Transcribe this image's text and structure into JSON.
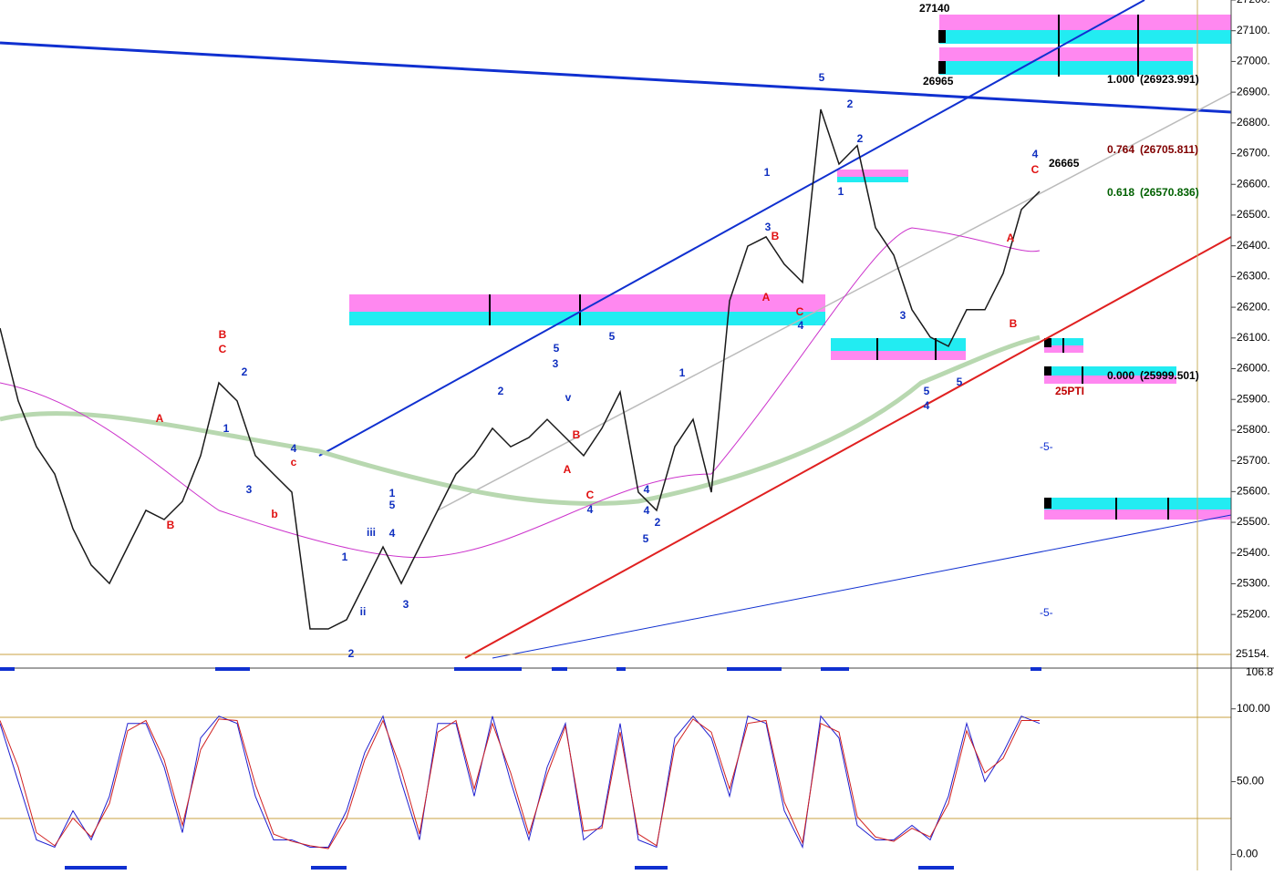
{
  "chart_data": [
    {
      "type": "line",
      "series": [
        {
          "name": "Price",
          "color": "#1a1a1a",
          "values": [
            26132,
            25895,
            25746,
            25657,
            25479,
            25361,
            25301,
            25420,
            25539,
            25509,
            25568,
            25717,
            25954,
            25895,
            25717,
            25657,
            25598,
            25153,
            25153,
            25183,
            25301,
            25420,
            25301,
            25420,
            25539,
            25657,
            25717,
            25806,
            25746,
            25776,
            25835,
            25776,
            25717,
            25806,
            25924,
            25598,
            25539,
            25746,
            25835,
            25598,
            26221,
            26399,
            26429,
            26340,
            26281,
            26844,
            26666,
            26726,
            26459,
            26370,
            26192,
            26103,
            26073,
            26192,
            26192,
            26310,
            26518,
            26577
          ]
        }
      ],
      "ylim": [
        25070,
        27200
      ],
      "yticks": [
        {
          "value": 27200,
          "label": "27200."
        },
        {
          "value": 27100,
          "label": "27100."
        },
        {
          "value": 27000,
          "label": "27000."
        },
        {
          "value": 26900,
          "label": "26900."
        },
        {
          "value": 26800,
          "label": "26800."
        },
        {
          "value": 26700,
          "label": "26700."
        },
        {
          "value": 26600,
          "label": "26600."
        },
        {
          "value": 26500,
          "label": "26500."
        },
        {
          "value": 26400,
          "label": "26400."
        },
        {
          "value": 26300,
          "label": "26300."
        },
        {
          "value": 26200,
          "label": "26200."
        },
        {
          "value": 26100,
          "label": "26100."
        },
        {
          "value": 26000,
          "label": "26000."
        },
        {
          "value": 25900,
          "label": "25900."
        },
        {
          "value": 25800,
          "label": "25800."
        },
        {
          "value": 25700,
          "label": "25700."
        },
        {
          "value": 25600,
          "label": "25600."
        },
        {
          "value": 25500,
          "label": "25500."
        },
        {
          "value": 25400,
          "label": "25400."
        },
        {
          "value": 25300,
          "label": "25300."
        },
        {
          "value": 25200,
          "label": "25200."
        }
      ],
      "annotations": [
        "27140",
        "26965",
        "26665",
        "1.000",
        "(26923.991)",
        "0.764",
        "(26705.811)",
        "0.618",
        "(26570.836)",
        "0.000",
        "(25999.501)",
        "25PTI",
        "-5-",
        "-5-",
        "25154."
      ],
      "wave_labels": [
        "B",
        "C",
        "A",
        "B",
        "1",
        "2",
        "3",
        "4",
        "c",
        "b",
        "1",
        "2",
        "3",
        "4",
        "5",
        "iii",
        "ii",
        "1",
        "v",
        "2",
        "3",
        "5",
        "5",
        "1",
        "2",
        "4",
        "A",
        "B",
        "C",
        "4",
        "1",
        "2",
        "3",
        "4",
        "5",
        "A",
        "B",
        "C",
        "4",
        "5",
        "1",
        "2",
        "3",
        "4",
        "5",
        "A",
        "B",
        "C",
        "4",
        "5"
      ]
    },
    {
      "type": "line",
      "series": [
        {
          "name": "%K",
          "color": "#2020d0",
          "values": [
            90,
            50,
            10,
            5,
            30,
            10,
            40,
            90,
            90,
            60,
            15,
            80,
            95,
            90,
            40,
            10,
            10,
            5,
            5,
            30,
            70,
            95,
            50,
            10,
            90,
            90,
            40,
            95,
            50,
            10,
            60,
            90,
            10,
            20,
            90,
            10,
            5,
            80,
            95,
            80,
            40,
            95,
            90,
            30,
            5,
            95,
            80,
            20,
            10,
            10,
            20,
            10,
            40,
            90,
            50,
            70,
            95,
            90
          ]
        },
        {
          "name": "%D",
          "color": "#d02020",
          "values": [
            92,
            60,
            15,
            6,
            25,
            12,
            35,
            85,
            92,
            65,
            20,
            72,
            93,
            92,
            48,
            14,
            9,
            6,
            4,
            25,
            65,
            92,
            58,
            14,
            84,
            92,
            45,
            90,
            56,
            14,
            55,
            88,
            16,
            18,
            84,
            14,
            6,
            74,
            93,
            84,
            45,
            90,
            92,
            36,
            8,
            90,
            84,
            26,
            12,
            9,
            18,
            12,
            35,
            85,
            56,
            66,
            92,
            92
          ]
        }
      ],
      "ylim": [
        -11,
        128
      ],
      "yticks": [
        {
          "value": 100,
          "label": "100.00"
        },
        {
          "value": 50,
          "label": "50.00"
        },
        {
          "value": 0,
          "label": "0.00"
        }
      ],
      "annotations": [
        "106.8"
      ]
    }
  ]
}
